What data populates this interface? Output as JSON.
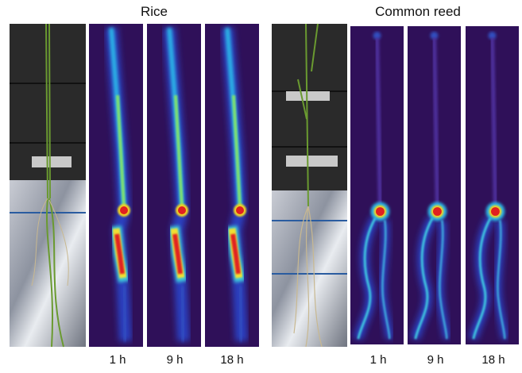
{
  "groups": [
    {
      "title": "Rice",
      "panels": [
        "1 h",
        "9 h",
        "18 h"
      ]
    },
    {
      "title": "Common reed",
      "panels": [
        "1 h",
        "9 h",
        "18 h"
      ]
    }
  ]
}
